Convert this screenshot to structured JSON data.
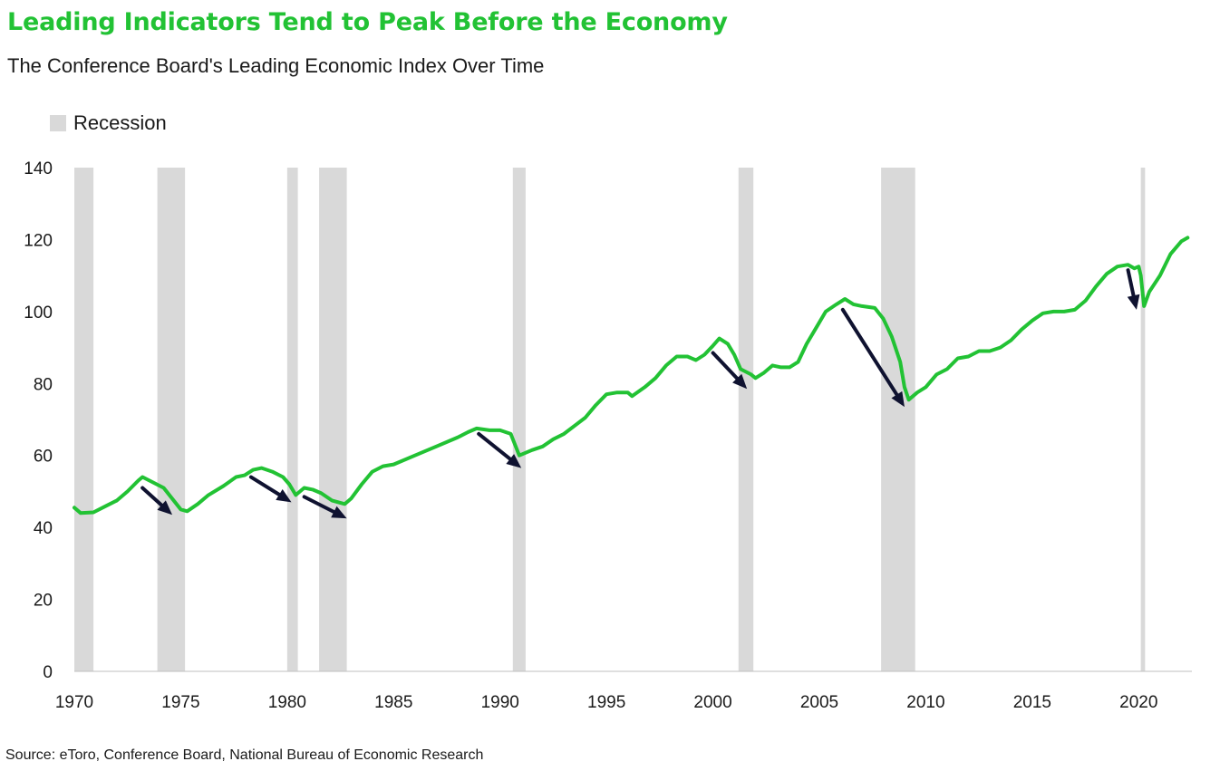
{
  "title": "Leading Indicators Tend to Peak Before the Economy",
  "subtitle": "The Conference Board's Leading Economic Index Over Time",
  "legend": {
    "label": "Recession",
    "color": "#d9d9d9"
  },
  "source": "Source: eToro, Conference Board, National Bureau of Economic Research",
  "colors": {
    "line": "#22c234",
    "title": "#22c234",
    "arrow": "#0f1230",
    "recession": "#d9d9d9"
  },
  "chart_data": {
    "type": "line",
    "title": "Leading Indicators Tend to Peak Before the Economy",
    "subtitle": "The Conference Board's Leading Economic Index Over Time",
    "xlabel": "",
    "ylabel": "",
    "xlim": [
      1970,
      2022.5
    ],
    "ylim": [
      0,
      140
    ],
    "x_ticks": [
      1970,
      1975,
      1980,
      1985,
      1990,
      1995,
      2000,
      2005,
      2010,
      2015,
      2020
    ],
    "y_ticks": [
      0,
      20,
      40,
      60,
      80,
      100,
      120,
      140
    ],
    "grid": false,
    "legend_position": "top-left",
    "recessions": [
      [
        1970.0,
        1970.9
      ],
      [
        1973.9,
        1975.2
      ],
      [
        1980.0,
        1980.5
      ],
      [
        1981.5,
        1982.8
      ],
      [
        1990.6,
        1991.2
      ],
      [
        2001.2,
        2001.9
      ],
      [
        2007.9,
        2009.5
      ],
      [
        2020.1,
        2020.3
      ]
    ],
    "series": [
      {
        "values": [
          [
            1970.0,
            45.5
          ],
          [
            1970.3,
            44
          ],
          [
            1970.9,
            44.2
          ],
          [
            1971.5,
            46
          ],
          [
            1972.0,
            47.5
          ],
          [
            1972.5,
            50
          ],
          [
            1973.0,
            53
          ],
          [
            1973.2,
            54
          ],
          [
            1973.7,
            52.5
          ],
          [
            1974.2,
            51
          ],
          [
            1974.6,
            48
          ],
          [
            1975.0,
            45
          ],
          [
            1975.3,
            44.5
          ],
          [
            1975.8,
            46.5
          ],
          [
            1976.3,
            49
          ],
          [
            1977.0,
            51.5
          ],
          [
            1977.6,
            54
          ],
          [
            1978.0,
            54.5
          ],
          [
            1978.4,
            56
          ],
          [
            1978.8,
            56.5
          ],
          [
            1979.3,
            55.5
          ],
          [
            1979.8,
            54
          ],
          [
            1980.1,
            52
          ],
          [
            1980.4,
            49
          ],
          [
            1980.8,
            51
          ],
          [
            1981.2,
            50.5
          ],
          [
            1981.6,
            49.5
          ],
          [
            1982.1,
            47.5
          ],
          [
            1982.7,
            46.5
          ],
          [
            1983.0,
            48
          ],
          [
            1983.5,
            52
          ],
          [
            1984.0,
            55.5
          ],
          [
            1984.5,
            57
          ],
          [
            1985.0,
            57.5
          ],
          [
            1986.0,
            60
          ],
          [
            1987.0,
            62.5
          ],
          [
            1988.0,
            65
          ],
          [
            1988.5,
            66.5
          ],
          [
            1988.9,
            67.5
          ],
          [
            1989.5,
            67
          ],
          [
            1990.0,
            67
          ],
          [
            1990.5,
            66
          ],
          [
            1990.7,
            63
          ],
          [
            1990.9,
            60
          ],
          [
            1991.5,
            61.5
          ],
          [
            1992.0,
            62.5
          ],
          [
            1992.5,
            64.5
          ],
          [
            1993.0,
            66
          ],
          [
            1994.0,
            70.5
          ],
          [
            1994.5,
            74
          ],
          [
            1995.0,
            77
          ],
          [
            1995.5,
            77.5
          ],
          [
            1996.0,
            77.5
          ],
          [
            1996.2,
            76.5
          ],
          [
            1996.8,
            79
          ],
          [
            1997.3,
            81.5
          ],
          [
            1997.8,
            85
          ],
          [
            1998.3,
            87.5
          ],
          [
            1998.8,
            87.5
          ],
          [
            1999.2,
            86.5
          ],
          [
            1999.6,
            88
          ],
          [
            2000.0,
            90.5
          ],
          [
            2000.3,
            92.5
          ],
          [
            2000.7,
            91
          ],
          [
            2001.0,
            88
          ],
          [
            2001.3,
            84
          ],
          [
            2001.8,
            82.5
          ],
          [
            2002.0,
            81.5
          ],
          [
            2002.4,
            83
          ],
          [
            2002.8,
            85
          ],
          [
            2003.2,
            84.5
          ],
          [
            2003.6,
            84.5
          ],
          [
            2004.0,
            86
          ],
          [
            2004.4,
            91
          ],
          [
            2004.9,
            96
          ],
          [
            2005.3,
            100
          ],
          [
            2005.8,
            102
          ],
          [
            2006.2,
            103.5
          ],
          [
            2006.6,
            102
          ],
          [
            2007.0,
            101.5
          ],
          [
            2007.6,
            101
          ],
          [
            2008.0,
            98
          ],
          [
            2008.4,
            93
          ],
          [
            2008.8,
            86
          ],
          [
            2009.0,
            79
          ],
          [
            2009.2,
            75.5
          ],
          [
            2009.6,
            77.5
          ],
          [
            2010.0,
            79
          ],
          [
            2010.5,
            82.5
          ],
          [
            2011.0,
            84
          ],
          [
            2011.5,
            87
          ],
          [
            2012.0,
            87.5
          ],
          [
            2012.5,
            89
          ],
          [
            2013.0,
            89
          ],
          [
            2013.5,
            90
          ],
          [
            2014.0,
            92
          ],
          [
            2014.5,
            95
          ],
          [
            2015.0,
            97.5
          ],
          [
            2015.5,
            99.5
          ],
          [
            2016.0,
            100
          ],
          [
            2016.5,
            100
          ],
          [
            2017.0,
            100.5
          ],
          [
            2017.5,
            103
          ],
          [
            2018.0,
            107
          ],
          [
            2018.5,
            110.5
          ],
          [
            2019.0,
            112.5
          ],
          [
            2019.5,
            113
          ],
          [
            2019.8,
            112
          ],
          [
            2020.0,
            112.5
          ],
          [
            2020.1,
            110
          ],
          [
            2020.25,
            101.5
          ],
          [
            2020.5,
            105.5
          ],
          [
            2021.0,
            110
          ],
          [
            2021.5,
            116
          ],
          [
            2022.0,
            119.5
          ],
          [
            2022.3,
            120.5
          ]
        ]
      }
    ],
    "annotations": [
      {
        "type": "arrow",
        "from": [
          1973.2,
          51
        ],
        "to": [
          1974.6,
          43.5
        ]
      },
      {
        "type": "arrow",
        "from": [
          1978.3,
          54
        ],
        "to": [
          1980.2,
          47
        ]
      },
      {
        "type": "arrow",
        "from": [
          1980.8,
          48.5
        ],
        "to": [
          1982.8,
          42.5
        ]
      },
      {
        "type": "arrow",
        "from": [
          1989.0,
          66
        ],
        "to": [
          1991.0,
          56.5
        ]
      },
      {
        "type": "arrow",
        "from": [
          2000.0,
          88.5
        ],
        "to": [
          2001.6,
          78.5
        ]
      },
      {
        "type": "arrow",
        "from": [
          2006.1,
          100.5
        ],
        "to": [
          2009.0,
          73.5
        ]
      },
      {
        "type": "arrow",
        "from": [
          2019.5,
          111.5
        ],
        "to": [
          2019.9,
          100.5
        ]
      }
    ]
  }
}
